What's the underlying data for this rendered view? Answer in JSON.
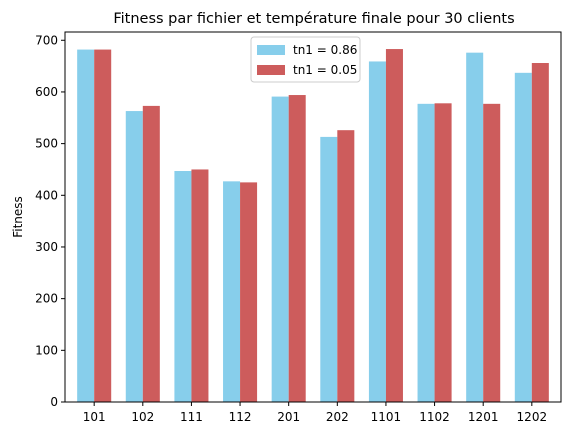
{
  "chart_data": {
    "type": "bar",
    "title": "Fitness par fichier et température finale pour 30 clients",
    "xlabel": "",
    "ylabel": "Fitness",
    "ylim": [
      0,
      716
    ],
    "yticks": [
      0,
      100,
      200,
      300,
      400,
      500,
      600,
      700
    ],
    "categories": [
      "101",
      "102",
      "111",
      "112",
      "201",
      "202",
      "1101",
      "1102",
      "1201",
      "1202"
    ],
    "series": [
      {
        "name": "tn1 = 0.86",
        "color": "#87ceeb",
        "values": [
          682,
          563,
          447,
          427,
          591,
          513,
          659,
          577,
          676,
          637
        ]
      },
      {
        "name": "tn1 = 0.05",
        "color": "#cd5c5c",
        "values": [
          682,
          573,
          450,
          425,
          594,
          526,
          683,
          578,
          577,
          656
        ]
      }
    ],
    "legend_position": "upper-center",
    "grid": false
  }
}
